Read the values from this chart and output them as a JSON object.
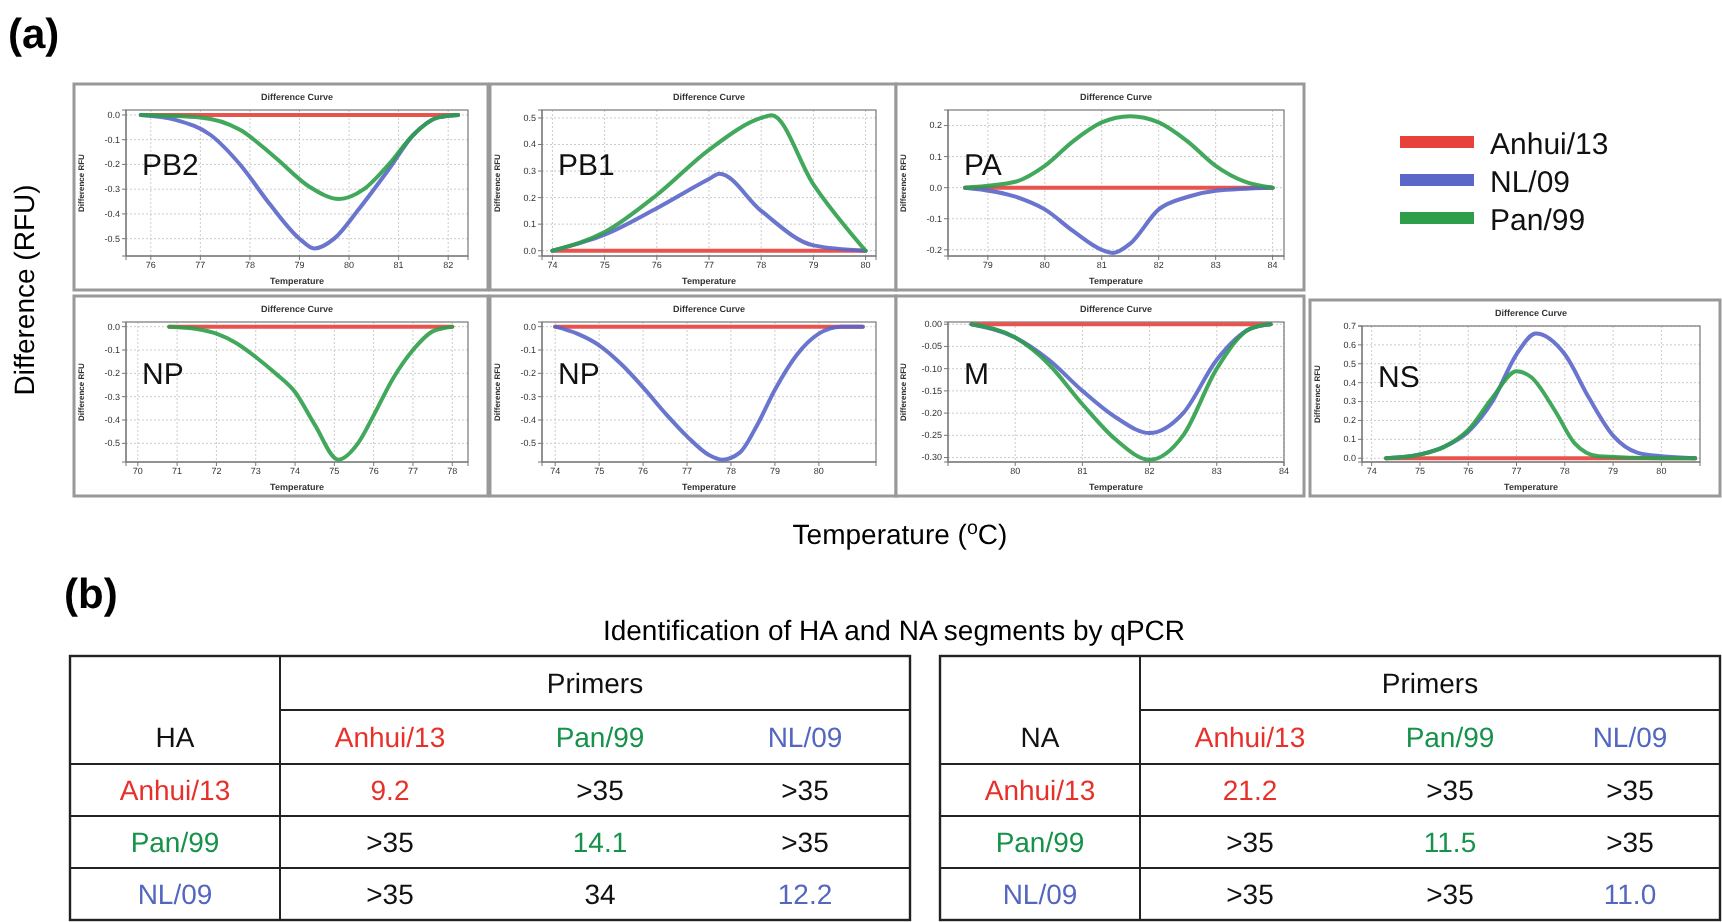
{
  "chart_data": [
    {
      "type": "line",
      "title": "Difference Curve",
      "xlabel": "Temperature",
      "ylabel": "Difference RFU",
      "annotations": [
        "PB2"
      ],
      "grid": true,
      "legend": "right",
      "xlim": [
        75.5,
        82.4
      ],
      "xticks": [
        76,
        77,
        78,
        79,
        80,
        81,
        82
      ],
      "ylim": [
        -0.57,
        0.02
      ],
      "yticks": [
        {
          "value": 0,
          "label": "0.0"
        },
        {
          "value": -0.1,
          "label": "-0.1"
        },
        {
          "value": -0.2,
          "label": "-0.2"
        },
        {
          "value": -0.3,
          "label": "-0.3"
        },
        {
          "value": -0.4,
          "label": "-0.4"
        },
        {
          "value": -0.5,
          "label": "-0.5"
        }
      ],
      "series": [
        {
          "name": "Anhui/13",
          "color": "#e8413c",
          "x": [
            75.8,
            79,
            82.2
          ],
          "values": [
            0,
            0,
            0
          ]
        },
        {
          "name": "NL/09",
          "color": "#5a66c8",
          "x": [
            75.8,
            76.5,
            77.2,
            77.8,
            78.4,
            79,
            79.3,
            79.7,
            80.2,
            80.8,
            81.3,
            81.8,
            82.2
          ],
          "values": [
            0,
            -0.02,
            -0.08,
            -0.2,
            -0.36,
            -0.5,
            -0.54,
            -0.5,
            -0.38,
            -0.22,
            -0.08,
            -0.01,
            0
          ]
        },
        {
          "name": "Pan/99",
          "color": "#2e9e4a",
          "x": [
            75.8,
            77,
            77.8,
            78.5,
            79.2,
            79.8,
            80.3,
            80.8,
            81.3,
            81.8,
            82.2
          ],
          "values": [
            0,
            -0.01,
            -0.06,
            -0.17,
            -0.29,
            -0.34,
            -0.3,
            -0.2,
            -0.08,
            -0.01,
            0
          ]
        }
      ]
    },
    {
      "type": "line",
      "title": "Difference Curve",
      "xlabel": "Temperature",
      "ylabel": "Difference RFU",
      "annotations": [
        "PB1"
      ],
      "grid": true,
      "xlim": [
        73.8,
        80.2
      ],
      "xticks": [
        74,
        75,
        76,
        77,
        78,
        79,
        80
      ],
      "ylim": [
        -0.02,
        0.53
      ],
      "yticks": [
        {
          "value": 0,
          "label": "0.0"
        },
        {
          "value": 0.1,
          "label": "0.1"
        },
        {
          "value": 0.2,
          "label": "0.2"
        },
        {
          "value": 0.3,
          "label": "0.3"
        },
        {
          "value": 0.4,
          "label": "0.4"
        },
        {
          "value": 0.5,
          "label": "0.5"
        }
      ],
      "series": [
        {
          "color": "#e8413c",
          "x": [
            74,
            77,
            80
          ],
          "values": [
            0,
            0,
            0
          ]
        },
        {
          "color": "#5a66c8",
          "x": [
            74,
            75,
            76,
            77,
            77.2,
            78,
            79,
            80
          ],
          "values": [
            0,
            0.06,
            0.16,
            0.27,
            0.29,
            0.15,
            0.02,
            0
          ]
        },
        {
          "color": "#2e9e4a",
          "x": [
            74,
            75,
            76,
            77,
            78,
            78.2,
            79,
            80
          ],
          "values": [
            0,
            0.07,
            0.21,
            0.38,
            0.5,
            0.51,
            0.25,
            0
          ]
        }
      ]
    },
    {
      "type": "line",
      "title": "Difference Curve",
      "xlabel": "Temperature",
      "ylabel": "Difference RFU",
      "annotations": [
        "PA"
      ],
      "grid": true,
      "xlim": [
        78.3,
        84.2
      ],
      "xticks": [
        79,
        80,
        81,
        82,
        83,
        84
      ],
      "ylim": [
        -0.22,
        0.25
      ],
      "yticks": [
        {
          "value": 0.2,
          "label": "0.2"
        },
        {
          "value": 0.1,
          "label": "0.1"
        },
        {
          "value": 0,
          "label": "0.0"
        },
        {
          "value": -0.1,
          "label": "-0.1"
        },
        {
          "value": -0.2,
          "label": "-0.2"
        }
      ],
      "series": [
        {
          "color": "#e8413c",
          "x": [
            78.6,
            81,
            84
          ],
          "values": [
            0,
            0,
            0
          ]
        },
        {
          "color": "#5a66c8",
          "x": [
            78.6,
            79.5,
            80,
            80.5,
            81,
            81.2,
            81.5,
            82,
            82.5,
            83,
            84
          ],
          "values": [
            0,
            -0.03,
            -0.07,
            -0.14,
            -0.2,
            -0.21,
            -0.18,
            -0.07,
            -0.03,
            -0.01,
            0
          ]
        },
        {
          "color": "#2e9e4a",
          "x": [
            78.6,
            79.5,
            80,
            80.5,
            81,
            81.5,
            82,
            82.5,
            83,
            83.5,
            84
          ],
          "values": [
            0,
            0.02,
            0.07,
            0.15,
            0.21,
            0.23,
            0.21,
            0.15,
            0.07,
            0.02,
            0
          ]
        }
      ]
    },
    {
      "type": "line",
      "title": "Difference Curve",
      "xlabel": "Temperature",
      "ylabel": "Difference RFU",
      "annotations": [
        "NP"
      ],
      "grid": true,
      "xlim": [
        69.7,
        78.4
      ],
      "xticks": [
        70,
        71,
        72,
        73,
        74,
        75,
        76,
        77,
        78
      ],
      "ylim": [
        -0.58,
        0.02
      ],
      "yticks": [
        {
          "value": 0,
          "label": "0.0"
        },
        {
          "value": -0.1,
          "label": "-0.1"
        },
        {
          "value": -0.2,
          "label": "-0.2"
        },
        {
          "value": -0.3,
          "label": "-0.3"
        },
        {
          "value": -0.4,
          "label": "-0.4"
        },
        {
          "value": -0.5,
          "label": "-0.5"
        }
      ],
      "series": [
        {
          "color": "#e8413c",
          "x": [
            70.8,
            74,
            78
          ],
          "values": [
            0,
            0,
            0
          ]
        },
        {
          "color": "#2e9e4a",
          "x": [
            70.8,
            71.5,
            72,
            72.5,
            73,
            73.5,
            74,
            74.5,
            75.1,
            75.6,
            76,
            76.5,
            77,
            77.5,
            78
          ],
          "values": [
            0,
            -0.01,
            -0.03,
            -0.07,
            -0.13,
            -0.2,
            -0.28,
            -0.42,
            -0.57,
            -0.5,
            -0.38,
            -0.22,
            -0.1,
            -0.02,
            0
          ]
        }
      ]
    },
    {
      "type": "line",
      "title": "Difference Curve",
      "xlabel": "Temperature",
      "ylabel": "Difference RFU",
      "annotations": [
        "NP"
      ],
      "grid": true,
      "xlim": [
        73.7,
        81.3
      ],
      "xticks": [
        74,
        75,
        76,
        77,
        78,
        79,
        80
      ],
      "ylim": [
        -0.58,
        0.02
      ],
      "yticks": [
        {
          "value": 0,
          "label": "0.0"
        },
        {
          "value": -0.1,
          "label": "-0.1"
        },
        {
          "value": -0.2,
          "label": "-0.2"
        },
        {
          "value": -0.3,
          "label": "-0.3"
        },
        {
          "value": -0.4,
          "label": "-0.4"
        },
        {
          "value": -0.5,
          "label": "-0.5"
        }
      ],
      "series": [
        {
          "color": "#e8413c",
          "x": [
            74,
            77,
            81
          ],
          "values": [
            0,
            0,
            0
          ]
        },
        {
          "color": "#5a66c8",
          "x": [
            74,
            74.5,
            75,
            75.5,
            76,
            76.5,
            77,
            77.5,
            77.8,
            78.2,
            78.6,
            79,
            79.5,
            80,
            80.5,
            81
          ],
          "values": [
            0,
            -0.03,
            -0.08,
            -0.16,
            -0.26,
            -0.37,
            -0.47,
            -0.55,
            -0.57,
            -0.54,
            -0.42,
            -0.27,
            -0.12,
            -0.03,
            0,
            0
          ]
        }
      ]
    },
    {
      "type": "line",
      "title": "Difference Curve",
      "xlabel": "Temperature",
      "ylabel": "Difference RFU",
      "annotations": [
        "M"
      ],
      "grid": true,
      "xlim": [
        79.0,
        84.0
      ],
      "xticks": [
        80,
        81,
        82,
        83,
        84
      ],
      "ylim": [
        -0.31,
        0.005
      ],
      "yticks": [
        {
          "value": 0,
          "label": "0.00"
        },
        {
          "value": -0.05,
          "label": "-0.05"
        },
        {
          "value": -0.1,
          "label": "-0.10"
        },
        {
          "value": -0.15,
          "label": "-0.15"
        },
        {
          "value": -0.2,
          "label": "-0.20"
        },
        {
          "value": -0.25,
          "label": "-0.25"
        },
        {
          "value": -0.3,
          "label": "-0.30"
        }
      ],
      "series": [
        {
          "color": "#e8413c",
          "x": [
            79.35,
            81.5,
            83.8
          ],
          "values": [
            0,
            0,
            0
          ]
        },
        {
          "color": "#5a66c8",
          "x": [
            79.35,
            80,
            80.5,
            81,
            81.5,
            82,
            82.5,
            83,
            83.5,
            83.8
          ],
          "values": [
            0,
            -0.03,
            -0.08,
            -0.15,
            -0.21,
            -0.245,
            -0.2,
            -0.08,
            -0.01,
            0
          ]
        },
        {
          "color": "#2e9e4a",
          "x": [
            79.35,
            80,
            80.5,
            81,
            81.5,
            82,
            82.5,
            83,
            83.5,
            83.8
          ],
          "values": [
            0,
            -0.03,
            -0.09,
            -0.18,
            -0.26,
            -0.305,
            -0.25,
            -0.1,
            -0.01,
            0
          ]
        }
      ]
    },
    {
      "type": "line",
      "title": "Difference Curve",
      "xlabel": "Temperature",
      "ylabel": "Difference RFU",
      "annotations": [
        "NS"
      ],
      "grid": true,
      "xlim": [
        73.8,
        80.8
      ],
      "xticks": [
        74,
        75,
        76,
        77,
        78,
        79,
        80
      ],
      "ylim": [
        -0.02,
        0.7
      ],
      "yticks": [
        {
          "value": 0,
          "label": "0.0"
        },
        {
          "value": 0.1,
          "label": "0.1"
        },
        {
          "value": 0.2,
          "label": "0.2"
        },
        {
          "value": 0.3,
          "label": "0.3"
        },
        {
          "value": 0.4,
          "label": "0.4"
        },
        {
          "value": 0.5,
          "label": "0.5"
        },
        {
          "value": 0.6,
          "label": "0.6"
        },
        {
          "value": 0.7,
          "label": "0.7"
        }
      ],
      "series": [
        {
          "color": "#e8413c",
          "x": [
            74.3,
            77,
            80.7
          ],
          "values": [
            0,
            0,
            0
          ]
        },
        {
          "color": "#5a66c8",
          "x": [
            74.3,
            75,
            75.5,
            76,
            76.5,
            77,
            77.4,
            78,
            78.5,
            79,
            79.5,
            80,
            80.7
          ],
          "values": [
            0,
            0.02,
            0.06,
            0.14,
            0.3,
            0.55,
            0.66,
            0.55,
            0.32,
            0.12,
            0.03,
            0.01,
            0
          ]
        },
        {
          "color": "#2e9e4a",
          "x": [
            74.3,
            75,
            75.5,
            76,
            76.5,
            77,
            77.3,
            77.8,
            78.2,
            78.7,
            80,
            80.7
          ],
          "values": [
            0,
            0.02,
            0.06,
            0.15,
            0.32,
            0.46,
            0.43,
            0.25,
            0.08,
            0.01,
            0,
            0
          ]
        }
      ]
    },
    {
      "type": "other",
      "title": "Identification of HA and NA segments by qPCR",
      "annotations": [
        "(a)",
        "Difference (RFU)",
        "Temperature ($^{o}$C)",
        "(b)",
        "Primers",
        "HA",
        "Anhui/13",
        "Pan/99",
        "NL/09",
        "Anhui/13",
        "9.2",
        ">35",
        ">35",
        "Pan/99",
        ">35",
        "14.1",
        ">35",
        "NL/09",
        ">35",
        "34",
        "12.2",
        "Primers",
        "NA",
        "Anhui/13",
        "Pan/99",
        "NL/09",
        "Anhui/13",
        "21.2",
        ">35",
        ">35",
        "Pan/99",
        ">35",
        "11.5",
        ">35",
        "NL/09",
        ">35",
        ">35",
        "11.0"
      ]
    }
  ]
}
